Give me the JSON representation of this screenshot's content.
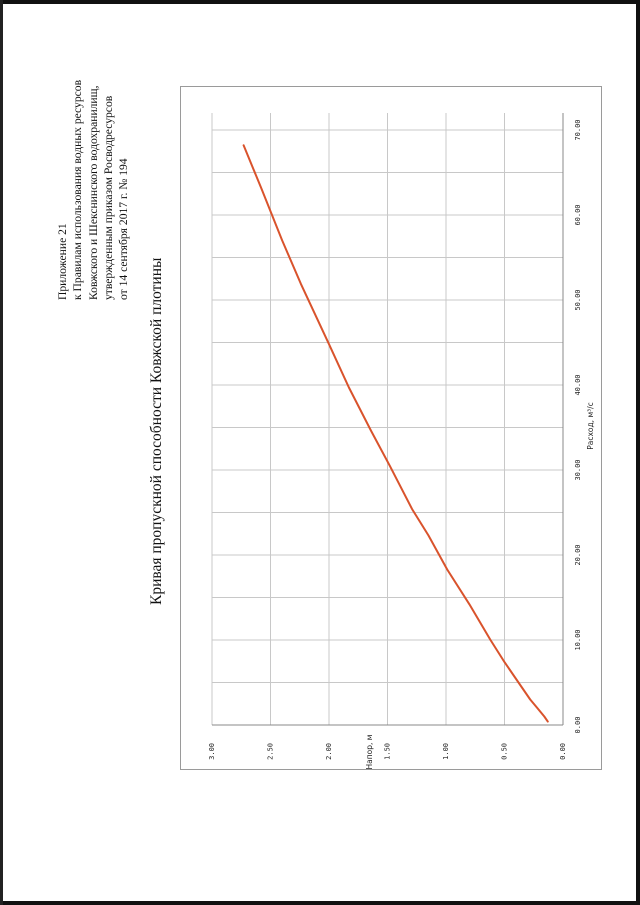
{
  "header": {
    "lines": [
      "Приложение 21",
      "к Правилам использования водных ресурсов",
      "Ковжского и Шекснинского водохранилищ,",
      "утвержденным приказом Росводресурсов",
      "от 14 сентября 2017 г. № 194"
    ]
  },
  "chart_title": "Кривая пропускной способности Ковжской плотины",
  "colors": {
    "curve": "#d9532c",
    "grid": "#c8c8c8",
    "frame": "#9a9a9a"
  },
  "chart_data": {
    "type": "line",
    "xlabel": "Расход, м³/с",
    "ylabel": "Напор, м",
    "xlim": [
      0,
      72
    ],
    "ylim": [
      0,
      3
    ],
    "x_ticks": [
      "0.00",
      "10.00",
      "20.00",
      "30.00",
      "40.00",
      "50.00",
      "60.00",
      "70.00"
    ],
    "y_ticks": [
      "0.00",
      "0.50",
      "1.00",
      "1.50",
      "2.00",
      "2.50",
      "3.00"
    ],
    "grid": true,
    "series": [
      {
        "x": [
          0.4,
          1.0,
          2.0,
          3.0,
          5.0,
          7.4,
          10.0,
          14.2,
          18.3,
          22.3,
          25.4,
          30.5,
          34.6,
          39.7,
          44.8,
          51.9,
          57.0,
          63.2,
          68.2
        ],
        "y": [
          0.13,
          0.16,
          0.22,
          0.28,
          0.38,
          0.5,
          0.62,
          0.8,
          0.99,
          1.15,
          1.29,
          1.48,
          1.64,
          1.83,
          2.0,
          2.24,
          2.4,
          2.58,
          2.73
        ]
      }
    ]
  }
}
